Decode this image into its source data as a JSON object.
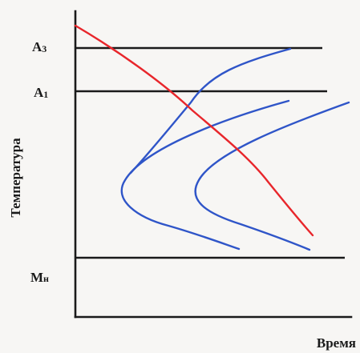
{
  "labels": {
    "a3_main": "A",
    "a3_sub": "3",
    "a1_main": "A",
    "a1_sub": "1",
    "mn_main": "М",
    "mn_sub": "н",
    "y_axis": "Температура",
    "x_axis": "Время"
  },
  "colors": {
    "axes": "#1a1a1a",
    "c_curves": "#2f55c8",
    "cooling_curve": "#e8262b",
    "background": "#f7f6f4"
  }
}
